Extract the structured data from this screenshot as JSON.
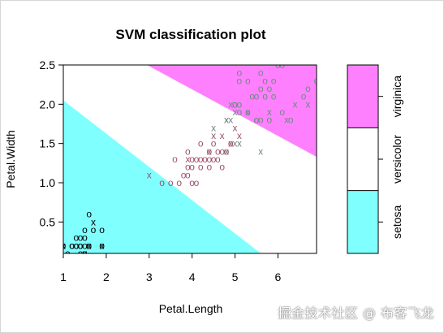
{
  "watermark": "掘金技术社区 @ 布客飞龙",
  "chart_data": {
    "type": "scatter",
    "title": "SVM classification plot",
    "xlabel": "Petal.Length",
    "ylabel": "Petal.Width",
    "xlim": [
      1,
      6.9
    ],
    "ylim": [
      0.1,
      2.5
    ],
    "xticks": [
      "1",
      "2",
      "3",
      "4",
      "5",
      "6"
    ],
    "yticks": [
      "0.5",
      "1.0",
      "1.5",
      "2.0",
      "2.5"
    ],
    "grid": false,
    "regions": [
      {
        "class": "setosa",
        "color": "#80ffff"
      },
      {
        "class": "versicolor",
        "color": "#ffffff"
      },
      {
        "class": "virginica",
        "color": "#ff80ff"
      }
    ],
    "legend": {
      "position": "right",
      "labels": [
        "setosa",
        "versicolor",
        "virginica"
      ],
      "colors": [
        "#80ffff",
        "#ffffff",
        "#ff80ff"
      ]
    },
    "marker_legend": {
      "support_vector": "x",
      "data_point": "o"
    },
    "series": [
      {
        "name": "setosa",
        "color": "#000000",
        "points": [
          {
            "x": 1.4,
            "y": 0.2,
            "m": "o"
          },
          {
            "x": 1.3,
            "y": 0.2,
            "m": "o"
          },
          {
            "x": 1.5,
            "y": 0.2,
            "m": "o"
          },
          {
            "x": 1.4,
            "y": 0.2,
            "m": "o"
          },
          {
            "x": 1.7,
            "y": 0.4,
            "m": "o"
          },
          {
            "x": 1.4,
            "y": 0.3,
            "m": "o"
          },
          {
            "x": 1.5,
            "y": 0.1,
            "m": "o"
          },
          {
            "x": 1.1,
            "y": 0.1,
            "m": "o"
          },
          {
            "x": 1.2,
            "y": 0.2,
            "m": "o"
          },
          {
            "x": 1.0,
            "y": 0.2,
            "m": "o"
          },
          {
            "x": 1.6,
            "y": 0.2,
            "m": "o"
          },
          {
            "x": 1.9,
            "y": 0.4,
            "m": "o"
          },
          {
            "x": 1.9,
            "y": 0.2,
            "m": "o"
          },
          {
            "x": 1.6,
            "y": 0.6,
            "m": "o"
          },
          {
            "x": 1.3,
            "y": 0.3,
            "m": "o"
          },
          {
            "x": 1.5,
            "y": 0.4,
            "m": "o"
          },
          {
            "x": 1.4,
            "y": 0.1,
            "m": "o"
          },
          {
            "x": 1.6,
            "y": 0.2,
            "m": "o"
          },
          {
            "x": 1.2,
            "y": 0.2,
            "m": "o"
          },
          {
            "x": 1.5,
            "y": 0.3,
            "m": "o"
          },
          {
            "x": 1.3,
            "y": 0.2,
            "m": "o"
          },
          {
            "x": 1.7,
            "y": 0.5,
            "m": "x"
          },
          {
            "x": 1.9,
            "y": 0.2,
            "m": "x"
          },
          {
            "x": 1.6,
            "y": 0.2,
            "m": "x"
          },
          {
            "x": 1.0,
            "y": 0.2,
            "m": "x"
          },
          {
            "x": 1.5,
            "y": 0.1,
            "m": "x"
          }
        ]
      },
      {
        "name": "versicolor",
        "color": "#a0546e",
        "points": [
          {
            "x": 3.0,
            "y": 1.1,
            "m": "x"
          },
          {
            "x": 3.3,
            "y": 1.0,
            "m": "o"
          },
          {
            "x": 3.5,
            "y": 1.0,
            "m": "o"
          },
          {
            "x": 3.6,
            "y": 1.3,
            "m": "o"
          },
          {
            "x": 3.7,
            "y": 1.0,
            "m": "o"
          },
          {
            "x": 3.8,
            "y": 1.1,
            "m": "o"
          },
          {
            "x": 3.9,
            "y": 1.1,
            "m": "o"
          },
          {
            "x": 3.9,
            "y": 1.2,
            "m": "o"
          },
          {
            "x": 3.9,
            "y": 1.4,
            "m": "o"
          },
          {
            "x": 4.0,
            "y": 1.0,
            "m": "o"
          },
          {
            "x": 4.0,
            "y": 1.2,
            "m": "o"
          },
          {
            "x": 4.0,
            "y": 1.3,
            "m": "o"
          },
          {
            "x": 4.1,
            "y": 1.0,
            "m": "o"
          },
          {
            "x": 4.1,
            "y": 1.3,
            "m": "o"
          },
          {
            "x": 4.2,
            "y": 1.2,
            "m": "o"
          },
          {
            "x": 4.2,
            "y": 1.3,
            "m": "o"
          },
          {
            "x": 4.2,
            "y": 1.5,
            "m": "o"
          },
          {
            "x": 4.3,
            "y": 1.3,
            "m": "o"
          },
          {
            "x": 4.4,
            "y": 1.2,
            "m": "o"
          },
          {
            "x": 4.4,
            "y": 1.3,
            "m": "o"
          },
          {
            "x": 4.4,
            "y": 1.4,
            "m": "o"
          },
          {
            "x": 4.5,
            "y": 1.3,
            "m": "o"
          },
          {
            "x": 4.5,
            "y": 1.5,
            "m": "o"
          },
          {
            "x": 4.6,
            "y": 1.3,
            "m": "o"
          },
          {
            "x": 4.6,
            "y": 1.4,
            "m": "o"
          },
          {
            "x": 4.7,
            "y": 1.2,
            "m": "o"
          },
          {
            "x": 4.7,
            "y": 1.4,
            "m": "o"
          },
          {
            "x": 4.8,
            "y": 1.4,
            "m": "o"
          },
          {
            "x": 4.9,
            "y": 1.5,
            "m": "o"
          },
          {
            "x": 5.0,
            "y": 1.7,
            "m": "x"
          },
          {
            "x": 5.1,
            "y": 1.6,
            "m": "x"
          },
          {
            "x": 4.5,
            "y": 1.6,
            "m": "x"
          },
          {
            "x": 4.4,
            "y": 1.4,
            "m": "x"
          },
          {
            "x": 4.8,
            "y": 1.8,
            "m": "x"
          },
          {
            "x": 4.9,
            "y": 1.5,
            "m": "x"
          },
          {
            "x": 4.7,
            "y": 1.6,
            "m": "x"
          },
          {
            "x": 3.9,
            "y": 1.3,
            "m": "x"
          },
          {
            "x": 5.0,
            "y": 2.0,
            "m": "o"
          }
        ]
      },
      {
        "name": "virginica",
        "color": "#6e8c82",
        "points": [
          {
            "x": 6.0,
            "y": 2.5,
            "m": "o"
          },
          {
            "x": 5.1,
            "y": 1.9,
            "m": "o"
          },
          {
            "x": 5.9,
            "y": 2.1,
            "m": "o"
          },
          {
            "x": 5.6,
            "y": 1.8,
            "m": "o"
          },
          {
            "x": 5.8,
            "y": 2.2,
            "m": "o"
          },
          {
            "x": 6.6,
            "y": 2.1,
            "m": "o"
          },
          {
            "x": 6.3,
            "y": 1.8,
            "m": "o"
          },
          {
            "x": 5.8,
            "y": 1.8,
            "m": "o"
          },
          {
            "x": 6.1,
            "y": 2.5,
            "m": "o"
          },
          {
            "x": 5.1,
            "y": 2.0,
            "m": "o"
          },
          {
            "x": 5.3,
            "y": 1.9,
            "m": "o"
          },
          {
            "x": 5.5,
            "y": 2.1,
            "m": "o"
          },
          {
            "x": 5.0,
            "y": 2.0,
            "m": "o"
          },
          {
            "x": 5.1,
            "y": 2.4,
            "m": "o"
          },
          {
            "x": 5.3,
            "y": 2.3,
            "m": "o"
          },
          {
            "x": 5.5,
            "y": 1.8,
            "m": "o"
          },
          {
            "x": 6.7,
            "y": 2.2,
            "m": "o"
          },
          {
            "x": 6.9,
            "y": 2.3,
            "m": "o"
          },
          {
            "x": 5.7,
            "y": 2.3,
            "m": "o"
          },
          {
            "x": 5.7,
            "y": 2.1,
            "m": "o"
          },
          {
            "x": 6.1,
            "y": 1.9,
            "m": "o"
          },
          {
            "x": 5.6,
            "y": 2.4,
            "m": "o"
          },
          {
            "x": 5.5,
            "y": 1.8,
            "m": "o"
          },
          {
            "x": 5.4,
            "y": 2.1,
            "m": "o"
          },
          {
            "x": 5.6,
            "y": 2.2,
            "m": "o"
          },
          {
            "x": 5.1,
            "y": 2.3,
            "m": "o"
          },
          {
            "x": 5.9,
            "y": 2.3,
            "m": "o"
          },
          {
            "x": 5.0,
            "y": 1.9,
            "m": "x"
          },
          {
            "x": 4.8,
            "y": 1.8,
            "m": "x"
          },
          {
            "x": 4.9,
            "y": 1.8,
            "m": "x"
          },
          {
            "x": 5.6,
            "y": 1.4,
            "m": "x"
          },
          {
            "x": 5.1,
            "y": 1.5,
            "m": "x"
          },
          {
            "x": 4.5,
            "y": 1.7,
            "m": "x"
          },
          {
            "x": 5.0,
            "y": 1.5,
            "m": "x"
          },
          {
            "x": 4.9,
            "y": 2.0,
            "m": "x"
          },
          {
            "x": 5.8,
            "y": 1.9,
            "m": "x"
          },
          {
            "x": 6.2,
            "y": 1.8,
            "m": "x"
          },
          {
            "x": 6.4,
            "y": 2.0,
            "m": "x"
          },
          {
            "x": 4.8,
            "y": 1.4,
            "m": "x"
          },
          {
            "x": 6.7,
            "y": 2.0,
            "m": "x"
          },
          {
            "x": 5.3,
            "y": 1.9,
            "m": "x"
          }
        ]
      }
    ]
  }
}
